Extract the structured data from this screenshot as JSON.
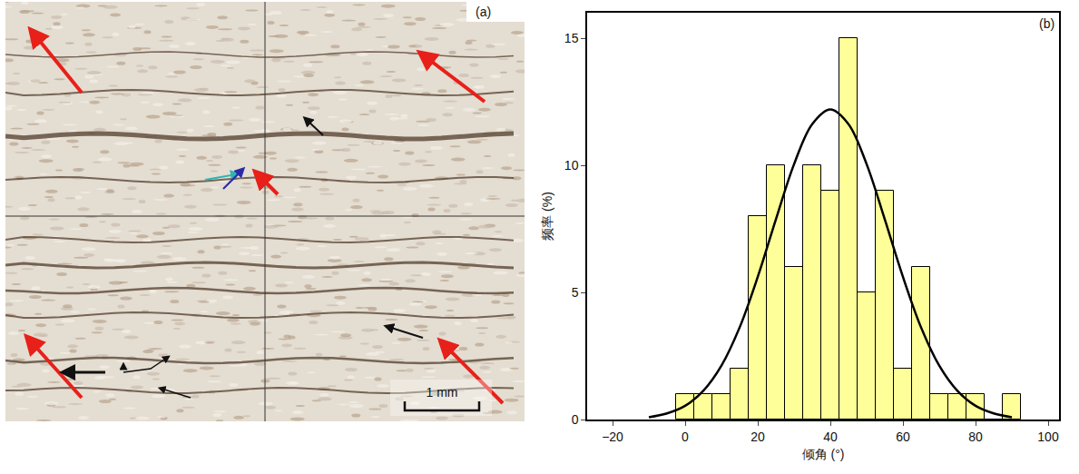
{
  "chart_data": {
    "type": "histogram",
    "panel_label": "(b)",
    "x_label": "倾角 (°)",
    "y_label": "频率 (%)",
    "bins": [
      -2.5,
      2.5,
      7.5,
      12.5,
      17.5,
      22.5,
      27.5,
      32.5,
      37.5,
      42.5,
      47.5,
      52.5,
      57.5,
      62.5,
      67.5,
      72.5,
      77.5,
      82.5,
      87.5,
      92.5
    ],
    "counts": [
      1,
      1,
      1,
      2,
      8,
      10,
      6,
      10,
      9,
      15,
      5,
      9,
      2,
      6,
      1,
      1,
      1,
      0,
      1
    ],
    "color": "#ffff99",
    "curve": {
      "type": "line",
      "color": "#000000",
      "x": [
        -10,
        -5,
        0,
        5,
        10,
        15,
        20,
        25,
        30,
        35,
        40,
        45,
        50,
        55,
        60,
        65,
        70,
        75,
        80,
        85,
        90
      ],
      "y": [
        0.09,
        0.24,
        0.54,
        1.13,
        2.12,
        3.62,
        5.61,
        7.87,
        10.04,
        11.62,
        12.2,
        11.62,
        10.04,
        7.87,
        5.61,
        3.62,
        2.12,
        1.13,
        0.54,
        0.24,
        0.09
      ]
    },
    "xlim": [
      -27,
      103
    ],
    "ylim": [
      0,
      16
    ],
    "xticks": [
      {
        "value": -20,
        "label": "−20"
      },
      0,
      20,
      40,
      60,
      80,
      100
    ],
    "yticks": [
      0,
      5,
      10,
      15
    ],
    "grid": false
  },
  "photo": {
    "panel_label": "(a)",
    "scale_bar": "1 mm"
  }
}
